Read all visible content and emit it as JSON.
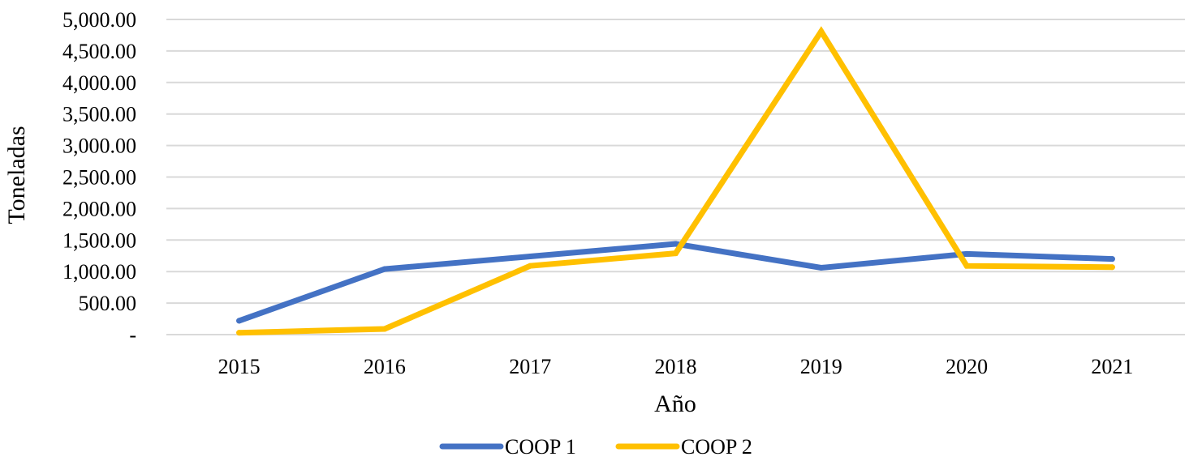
{
  "chart_data": {
    "type": "line",
    "title": "",
    "xlabel": "Año",
    "ylabel": "Toneladas",
    "categories": [
      "2015",
      "2016",
      "2017",
      "2018",
      "2019",
      "2020",
      "2021"
    ],
    "y_ticks": [
      0,
      500,
      1000,
      1500,
      2000,
      2500,
      3000,
      3500,
      4000,
      4500,
      5000
    ],
    "y_tick_labels": [
      "-",
      "500.00",
      "1,000.00",
      "1,500.00",
      "2,000.00",
      "2,500.00",
      "3,000.00",
      "3,500.00",
      "4,000.00",
      "4,500.00",
      "5,000.00"
    ],
    "ylim": [
      0,
      5000
    ],
    "grid": true,
    "legend_position": "bottom",
    "series": [
      {
        "name": "COOP 1",
        "color": "#4472c4",
        "values": [
          220,
          1040,
          1240,
          1440,
          1060,
          1280,
          1200
        ]
      },
      {
        "name": "COOP 2",
        "color": "#ffc000",
        "values": [
          30,
          90,
          1090,
          1290,
          4810,
          1090,
          1070
        ]
      }
    ]
  }
}
